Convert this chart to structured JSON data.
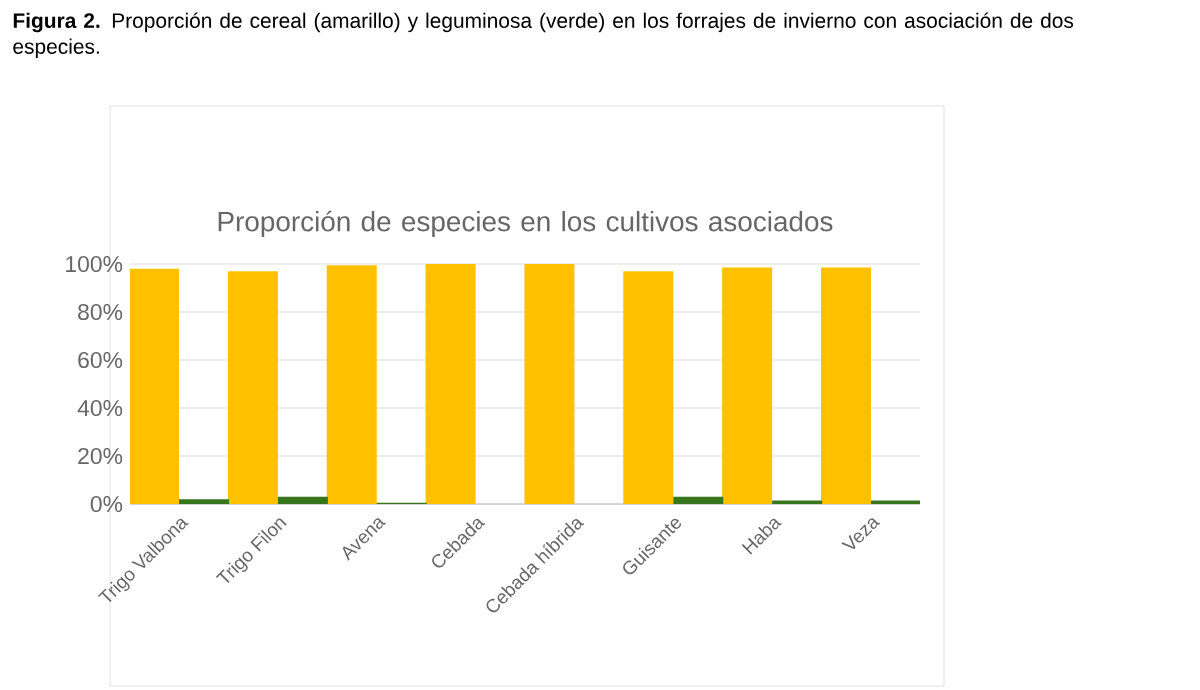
{
  "chart_data": {
    "type": "bar",
    "title": "Proporción de especies en los cultivos asociados",
    "annotations": [
      "**Figura 2.** Proporción de cereal (amarillo) y leguminosa (verde) en los forrajes de invierno con asociación de dos especies."
    ],
    "categories": [
      "Trigo Valbona",
      "Trigo Filon",
      "Avena",
      "Cebada",
      "Cebada híbrida",
      "Guisante",
      "Haba",
      "Veza"
    ],
    "series": [
      {
        "color": "#ffc000",
        "values": [
          98,
          97,
          99.5,
          100,
          100,
          97,
          98.5,
          98.5
        ]
      },
      {
        "color": "#38761d",
        "values": [
          2,
          3,
          0.5,
          0,
          0,
          3,
          1.5,
          1.5
        ]
      }
    ],
    "ylim": [
      0,
      100
    ],
    "yticks": [
      {
        "value": 0,
        "label": "0%"
      },
      {
        "value": 20,
        "label": "20%"
      },
      {
        "value": 40,
        "label": "40%"
      },
      {
        "value": 60,
        "label": "60%"
      },
      {
        "value": 80,
        "label": "80%"
      },
      {
        "value": 100,
        "label": "100%"
      }
    ],
    "grid": "y"
  }
}
